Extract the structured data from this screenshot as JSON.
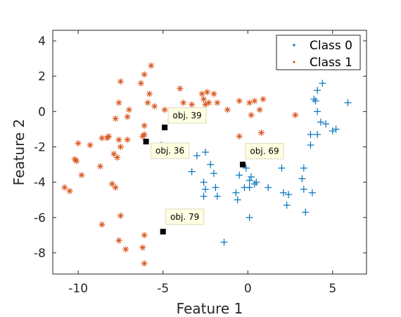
{
  "chart_data": {
    "type": "scatter",
    "xlabel": "Feature 1",
    "ylabel": "Feature 2",
    "xlim": [
      -11.5,
      7
    ],
    "ylim": [
      -9.2,
      4.6
    ],
    "xticks": [
      -10,
      -5,
      0,
      5
    ],
    "yticks": [
      -8,
      -6,
      -4,
      -2,
      0,
      2,
      4
    ],
    "grid": false,
    "legend_position": "top-right",
    "legend": [
      {
        "label": "Class 0",
        "color": "#0072bd"
      },
      {
        "label": "Class 1",
        "color": "#d95319"
      }
    ],
    "series": [
      {
        "name": "Class 0",
        "marker": "plus",
        "color": "#0072bd",
        "points": [
          [
            4.4,
            1.6
          ],
          [
            4.1,
            1.2
          ],
          [
            3.9,
            0.7
          ],
          [
            4.0,
            0.6
          ],
          [
            4.1,
            0.0
          ],
          [
            4.3,
            -0.6
          ],
          [
            4.6,
            -0.7
          ],
          [
            5.0,
            -1.1
          ],
          [
            5.2,
            -1.0
          ],
          [
            4.1,
            -1.3
          ],
          [
            3.7,
            -1.3
          ],
          [
            3.7,
            -1.9
          ],
          [
            5.9,
            0.5
          ],
          [
            -2.5,
            -2.3
          ],
          [
            -3.0,
            -2.5
          ],
          [
            -2.2,
            -3.0
          ],
          [
            -2.0,
            -3.5
          ],
          [
            -3.3,
            -3.4
          ],
          [
            -2.6,
            -4.0
          ],
          [
            -2.5,
            -4.4
          ],
          [
            -1.9,
            -4.3
          ],
          [
            -1.8,
            -4.8
          ],
          [
            -2.6,
            -4.8
          ],
          [
            -1.4,
            -7.4
          ],
          [
            -0.7,
            -4.6
          ],
          [
            -0.6,
            -5.0
          ],
          [
            -0.1,
            -3.2
          ],
          [
            -0.5,
            -3.6
          ],
          [
            0.2,
            -3.7
          ],
          [
            0.1,
            -3.9
          ],
          [
            0.1,
            -4.3
          ],
          [
            -0.2,
            -4.3
          ],
          [
            0.4,
            -4.1
          ],
          [
            0.5,
            -4.0
          ],
          [
            0.1,
            -6.0
          ],
          [
            1.2,
            -4.3
          ],
          [
            2.0,
            -3.2
          ],
          [
            3.3,
            -3.2
          ],
          [
            2.1,
            -4.6
          ],
          [
            2.4,
            -4.7
          ],
          [
            2.3,
            -5.3
          ],
          [
            3.2,
            -3.8
          ],
          [
            3.3,
            -4.4
          ],
          [
            3.8,
            -4.6
          ],
          [
            3.4,
            -5.7
          ],
          [
            -5.1,
            -1.9
          ]
        ]
      },
      {
        "name": "Class 1",
        "marker": "asterisk",
        "color": "#d95319",
        "points": [
          [
            -5.7,
            2.6
          ],
          [
            -6.1,
            2.1
          ],
          [
            -7.5,
            1.7
          ],
          [
            -6.3,
            1.6
          ],
          [
            -5.8,
            1.0
          ],
          [
            -5.9,
            0.5
          ],
          [
            -5.5,
            0.3
          ],
          [
            -7.6,
            0.5
          ],
          [
            -7.0,
            0.1
          ],
          [
            -7.8,
            -0.4
          ],
          [
            -7.1,
            -0.3
          ],
          [
            -6.1,
            -0.8
          ],
          [
            -6.1,
            -1.3
          ],
          [
            -6.2,
            -1.4
          ],
          [
            -8.2,
            -1.4
          ],
          [
            -8.3,
            -1.5
          ],
          [
            -8.6,
            -1.5
          ],
          [
            -7.6,
            -1.6
          ],
          [
            -7.1,
            -1.6
          ],
          [
            -9.3,
            -1.9
          ],
          [
            -10.0,
            -1.8
          ],
          [
            -7.5,
            -2.0
          ],
          [
            -7.9,
            -2.4
          ],
          [
            -7.7,
            -2.6
          ],
          [
            -10.2,
            -2.7
          ],
          [
            -10.1,
            -2.8
          ],
          [
            -8.7,
            -3.1
          ],
          [
            -9.8,
            -3.6
          ],
          [
            -8.0,
            -4.1
          ],
          [
            -7.8,
            -4.3
          ],
          [
            -10.8,
            -4.3
          ],
          [
            -10.5,
            -4.5
          ],
          [
            -7.5,
            -5.9
          ],
          [
            -8.6,
            -6.4
          ],
          [
            -6.1,
            -7.0
          ],
          [
            -6.2,
            -7.7
          ],
          [
            -7.6,
            -7.3
          ],
          [
            -7.2,
            -7.8
          ],
          [
            -6.1,
            -8.6
          ],
          [
            -4.9,
            0.1
          ],
          [
            -4.0,
            1.3
          ],
          [
            -3.8,
            0.5
          ],
          [
            -3.3,
            0.4
          ],
          [
            -2.4,
            1.1
          ],
          [
            -2.7,
            1.0
          ],
          [
            -2.0,
            1.0
          ],
          [
            -2.6,
            0.7
          ],
          [
            -2.3,
            0.5
          ],
          [
            -2.5,
            0.4
          ],
          [
            -1.8,
            0.5
          ],
          [
            -1.2,
            0.1
          ],
          [
            -0.5,
            0.6
          ],
          [
            0.1,
            0.5
          ],
          [
            0.4,
            0.6
          ],
          [
            0.9,
            0.7
          ],
          [
            0.7,
            0.1
          ],
          [
            0.2,
            -0.2
          ],
          [
            0.8,
            -1.2
          ],
          [
            -0.5,
            -1.4
          ],
          [
            2.8,
            -0.2
          ]
        ]
      }
    ],
    "highlighted": [
      {
        "label": "obj. 39",
        "x": -4.9,
        "y": -0.9
      },
      {
        "label": "obj. 36",
        "x": -6.0,
        "y": -1.7
      },
      {
        "label": "obj. 69",
        "x": -0.3,
        "y": -3.0
      },
      {
        "label": "obj. 79",
        "x": -5.0,
        "y": -6.8
      }
    ]
  }
}
